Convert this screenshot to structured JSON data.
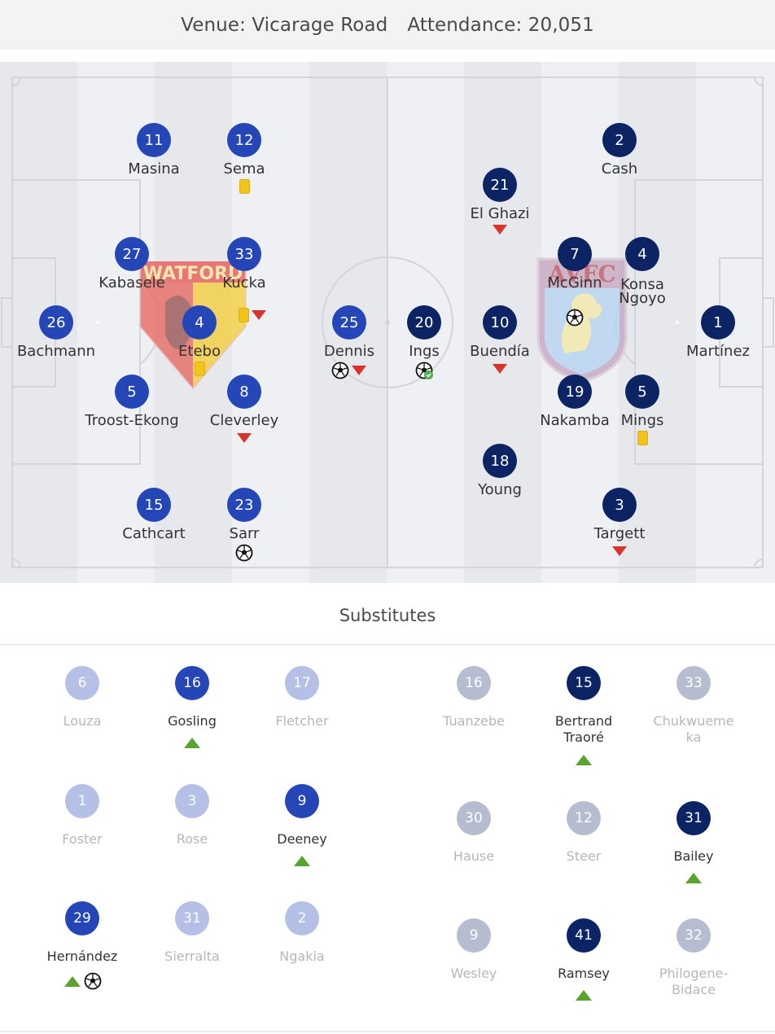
{
  "header": {
    "venue": "Venue: Vicarage Road",
    "attendance": "Attendance: 20,051"
  },
  "colors": {
    "home": "#2546b7",
    "away": "#0c2364",
    "home_muted": "#b4c0e6",
    "away_muted": "#b7bdd0",
    "sub_on": "#5aa32e",
    "sub_off": "#d8342b",
    "yellow_card": "#f2c31a"
  },
  "crests": {
    "home": "WATFORD",
    "away": "AVFC"
  },
  "home_team": {
    "players": [
      {
        "num": "26",
        "name": "Bachmann",
        "events": []
      },
      {
        "num": "11",
        "name": "Masina",
        "events": []
      },
      {
        "num": "12",
        "name": "Sema",
        "events": [
          "yellow-card"
        ]
      },
      {
        "num": "27",
        "name": "Kabasele",
        "events": []
      },
      {
        "num": "33",
        "name": "Kucka",
        "events": [
          "yellow-card",
          "sub-off"
        ]
      },
      {
        "num": "4",
        "name": "Etebo",
        "events": [
          "yellow-card"
        ]
      },
      {
        "num": "5",
        "name": "Troost-Ekong",
        "events": []
      },
      {
        "num": "8",
        "name": "Cleverley",
        "events": [
          "sub-off"
        ]
      },
      {
        "num": "15",
        "name": "Cathcart",
        "events": []
      },
      {
        "num": "23",
        "name": "Sarr",
        "events": [
          "goal"
        ]
      },
      {
        "num": "25",
        "name": "Dennis",
        "events": [
          "goal",
          "sub-off"
        ]
      }
    ]
  },
  "away_team": {
    "players": [
      {
        "num": "20",
        "name": "Ings",
        "events": [
          "goal-confirmed"
        ]
      },
      {
        "num": "21",
        "name": "El Ghazi",
        "events": [
          "sub-off"
        ]
      },
      {
        "num": "10",
        "name": "Buendía",
        "events": [
          "sub-off"
        ]
      },
      {
        "num": "18",
        "name": "Young",
        "events": []
      },
      {
        "num": "7",
        "name": "McGinn",
        "events": [
          "goal"
        ]
      },
      {
        "num": "19",
        "name": "Nakamba",
        "events": []
      },
      {
        "num": "2",
        "name": "Cash",
        "events": []
      },
      {
        "num": "4",
        "name": "Konsa Ngoyo",
        "events": []
      },
      {
        "num": "5",
        "name": "Mings",
        "events": [
          "yellow-card"
        ]
      },
      {
        "num": "3",
        "name": "Targett",
        "events": [
          "sub-off"
        ]
      },
      {
        "num": "1",
        "name": "Martínez",
        "events": []
      }
    ]
  },
  "substitutes": {
    "title": "Substitutes",
    "home": [
      {
        "num": "6",
        "name": "Louza",
        "played": false,
        "events": []
      },
      {
        "num": "16",
        "name": "Gosling",
        "played": true,
        "events": [
          "sub-on"
        ]
      },
      {
        "num": "17",
        "name": "Fletcher",
        "played": false,
        "events": []
      },
      {
        "num": "1",
        "name": "Foster",
        "played": false,
        "events": []
      },
      {
        "num": "3",
        "name": "Rose",
        "played": false,
        "events": []
      },
      {
        "num": "9",
        "name": "Deeney",
        "played": true,
        "events": [
          "sub-on"
        ]
      },
      {
        "num": "29",
        "name": "Hernández",
        "played": true,
        "events": [
          "sub-on",
          "goal"
        ]
      },
      {
        "num": "31",
        "name": "Sierralta",
        "played": false,
        "events": []
      },
      {
        "num": "2",
        "name": "Ngakia",
        "played": false,
        "events": []
      }
    ],
    "away": [
      {
        "num": "16",
        "name": "Tuanzebe",
        "played": false,
        "events": []
      },
      {
        "num": "15",
        "name": "Bertrand Traoré",
        "played": true,
        "events": [
          "sub-on"
        ]
      },
      {
        "num": "33",
        "name": "Chukwuemeka",
        "played": false,
        "events": []
      },
      {
        "num": "30",
        "name": "Hause",
        "played": false,
        "events": []
      },
      {
        "num": "12",
        "name": "Steer",
        "played": false,
        "events": []
      },
      {
        "num": "31",
        "name": "Bailey",
        "played": true,
        "events": [
          "sub-on"
        ]
      },
      {
        "num": "9",
        "name": "Wesley",
        "played": false,
        "events": []
      },
      {
        "num": "41",
        "name": "Ramsey",
        "played": true,
        "events": [
          "sub-on"
        ]
      },
      {
        "num": "32",
        "name": "Philogene-Bidace",
        "played": false,
        "events": []
      }
    ]
  }
}
